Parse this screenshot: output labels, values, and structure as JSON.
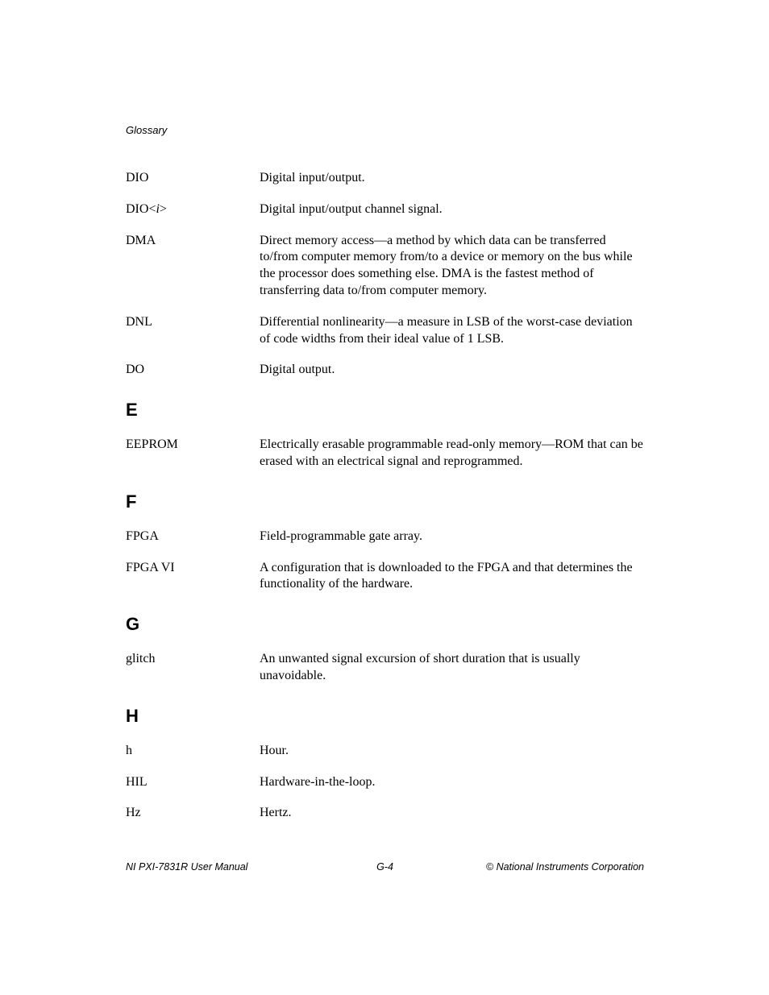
{
  "header": "Glossary",
  "entries_d": [
    {
      "term": "DIO",
      "definition": "Digital input/output."
    },
    {
      "term": "DIO<i>",
      "term_html": true,
      "definition": "Digital input/output channel signal."
    },
    {
      "term": "DMA",
      "definition": "Direct memory access—a method by which data can be transferred to/from computer memory from/to a device or memory on the bus while the processor does something else. DMA is the fastest method of transferring data to/from computer memory."
    },
    {
      "term": "DNL",
      "definition": "Differential nonlinearity—a measure in LSB of the worst-case deviation of code widths from their ideal value of 1 LSB."
    },
    {
      "term": "DO",
      "definition": "Digital output."
    }
  ],
  "section_e": "E",
  "entries_e": [
    {
      "term": "EEPROM",
      "definition": "Electrically erasable programmable read-only memory—ROM that can be erased with an electrical signal and reprogrammed."
    }
  ],
  "section_f": "F",
  "entries_f": [
    {
      "term": "FPGA",
      "definition": "Field-programmable gate array."
    },
    {
      "term": "FPGA VI",
      "definition": "A configuration that is downloaded to the FPGA and that determines the functionality of the hardware."
    }
  ],
  "section_g": "G",
  "entries_g": [
    {
      "term": "glitch",
      "definition": "An unwanted signal excursion of short duration that is usually unavoidable."
    }
  ],
  "section_h": "H",
  "entries_h": [
    {
      "term": "h",
      "definition": "Hour."
    },
    {
      "term": "HIL",
      "definition": "Hardware-in-the-loop."
    },
    {
      "term": "Hz",
      "definition": "Hertz."
    }
  ],
  "footer": {
    "left": "NI PXI-7831R User Manual",
    "center": "G-4",
    "right": "© National Instruments Corporation"
  }
}
